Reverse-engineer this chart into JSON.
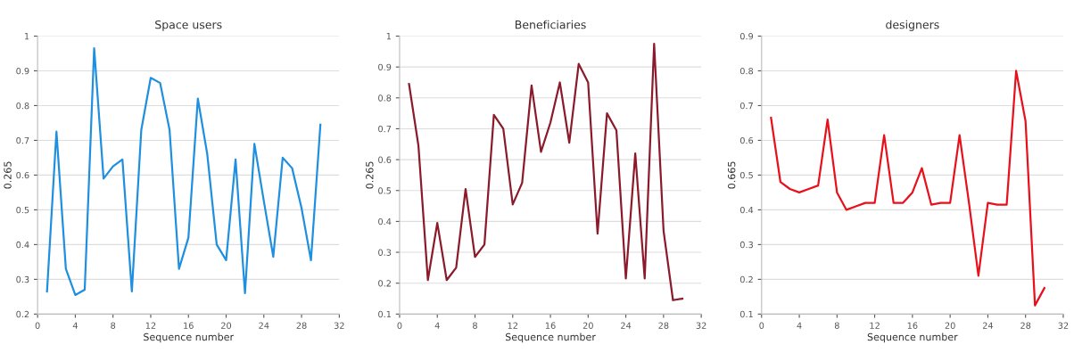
{
  "chart_data": [
    {
      "type": "line",
      "title": "Space users",
      "xlabel": "Sequence number",
      "ylabel": "0.265",
      "xlim": [
        0,
        32
      ],
      "xticks": [
        0,
        4,
        8,
        12,
        16,
        20,
        24,
        28,
        32
      ],
      "ylim": [
        0.2,
        1
      ],
      "yticks": [
        0.2,
        0.3,
        0.4,
        0.5,
        0.6,
        0.7,
        0.8,
        0.9,
        1
      ],
      "grid": "y",
      "legend": false,
      "x": [
        1,
        2,
        3,
        4,
        5,
        6,
        7,
        8,
        9,
        10,
        11,
        12,
        13,
        14,
        15,
        16,
        17,
        18,
        19,
        20,
        21,
        22,
        23,
        24,
        25,
        26,
        27,
        28,
        29,
        30
      ],
      "series": [
        {
          "color": "#1f8fe0",
          "values": [
            0.265,
            0.725,
            0.33,
            0.255,
            0.27,
            0.965,
            0.59,
            0.625,
            0.645,
            0.265,
            0.73,
            0.88,
            0.865,
            0.73,
            0.33,
            0.42,
            0.82,
            0.66,
            0.4,
            0.355,
            0.645,
            0.26,
            0.69,
            0.525,
            0.365,
            0.65,
            0.62,
            0.505,
            0.355,
            0.745
          ]
        }
      ]
    },
    {
      "type": "line",
      "title": "Beneficiaries",
      "xlabel": "Sequence number",
      "ylabel": "0.265",
      "xlim": [
        0,
        32
      ],
      "xticks": [
        0,
        4,
        8,
        12,
        16,
        20,
        24,
        28,
        32
      ],
      "ylim": [
        0.1,
        1
      ],
      "yticks": [
        0.1,
        0.2,
        0.3,
        0.4,
        0.5,
        0.6,
        0.7,
        0.8,
        0.9,
        1
      ],
      "grid": "y",
      "legend": false,
      "x": [
        1,
        2,
        3,
        4,
        5,
        6,
        7,
        8,
        9,
        10,
        11,
        12,
        13,
        14,
        15,
        16,
        17,
        18,
        19,
        20,
        21,
        22,
        23,
        24,
        25,
        26,
        27,
        28,
        29,
        30
      ],
      "series": [
        {
          "color": "#8b1a2b",
          "values": [
            0.845,
            0.645,
            0.21,
            0.395,
            0.21,
            0.25,
            0.505,
            0.285,
            0.325,
            0.745,
            0.7,
            0.455,
            0.525,
            0.84,
            0.625,
            0.72,
            0.85,
            0.655,
            0.91,
            0.85,
            0.36,
            0.75,
            0.695,
            0.215,
            0.62,
            0.215,
            0.975,
            0.37,
            0.145,
            0.15
          ]
        }
      ]
    },
    {
      "type": "line",
      "title": "designers",
      "xlabel": "Sequence number",
      "ylabel": "0.665",
      "xlim": [
        0,
        32
      ],
      "xticks": [
        0,
        4,
        8,
        12,
        16,
        20,
        24,
        28,
        32
      ],
      "ylim": [
        0.1,
        0.9
      ],
      "yticks": [
        0.1,
        0.2,
        0.3,
        0.4,
        0.5,
        0.6,
        0.7,
        0.8,
        0.9
      ],
      "grid": "y",
      "legend": false,
      "x": [
        1,
        2,
        3,
        4,
        5,
        6,
        7,
        8,
        9,
        10,
        11,
        12,
        13,
        14,
        15,
        16,
        17,
        18,
        19,
        20,
        21,
        22,
        23,
        24,
        25,
        26,
        27,
        28,
        29,
        30
      ],
      "series": [
        {
          "color": "#e8101a",
          "values": [
            0.665,
            0.48,
            0.46,
            0.45,
            0.46,
            0.47,
            0.66,
            0.45,
            0.4,
            0.41,
            0.42,
            0.42,
            0.615,
            0.42,
            0.42,
            0.45,
            0.52,
            0.415,
            0.42,
            0.42,
            0.615,
            0.42,
            0.21,
            0.42,
            0.415,
            0.415,
            0.8,
            0.655,
            0.125,
            0.175
          ]
        }
      ]
    }
  ]
}
